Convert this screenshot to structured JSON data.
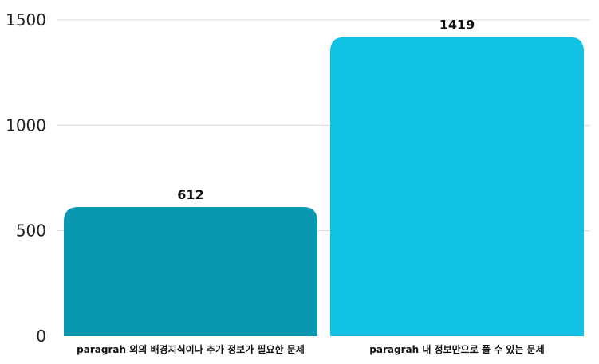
{
  "chart_data": {
    "type": "bar",
    "categories": [
      "paragrah 외의 배경지식이나 추가 정보가 필요한 문제",
      "paragrah 내 정보만으로 풀 수 있는 문제"
    ],
    "values": [
      612,
      1419
    ],
    "data_labels": [
      "612",
      "1419"
    ],
    "bar_colors": [
      "#0a97b0",
      "#10c1e3"
    ],
    "ylim": [
      0,
      1500
    ],
    "yticks": [
      0,
      500,
      1000,
      1500
    ],
    "ytick_labels": [
      "0",
      "500",
      "1000",
      "1500"
    ],
    "grid": true,
    "legend": "none"
  }
}
